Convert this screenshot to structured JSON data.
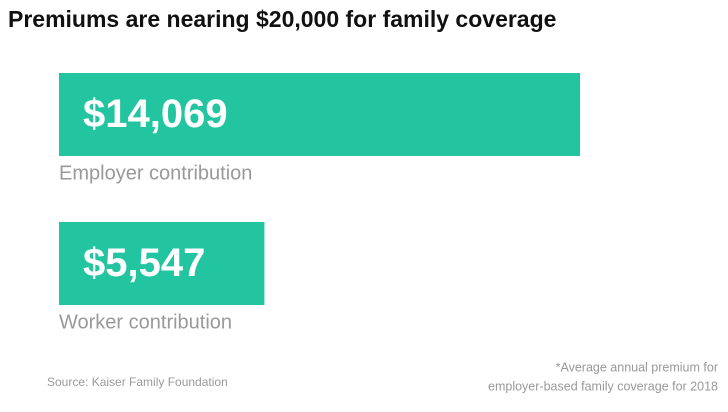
{
  "chart_data": {
    "type": "hbar",
    "title": "Premiums are nearing $20,000 for family coverage",
    "categories": [
      "Employer contribution",
      "Worker contribution"
    ],
    "values": [
      14069,
      5547
    ],
    "value_labels": [
      "$14,069",
      "$5,547"
    ],
    "color": "#22c5a0",
    "source": "Source: Kaiser Family Foundation",
    "note": [
      "*Average annual premium for",
      "employer-based family coverage for 2018"
    ]
  }
}
